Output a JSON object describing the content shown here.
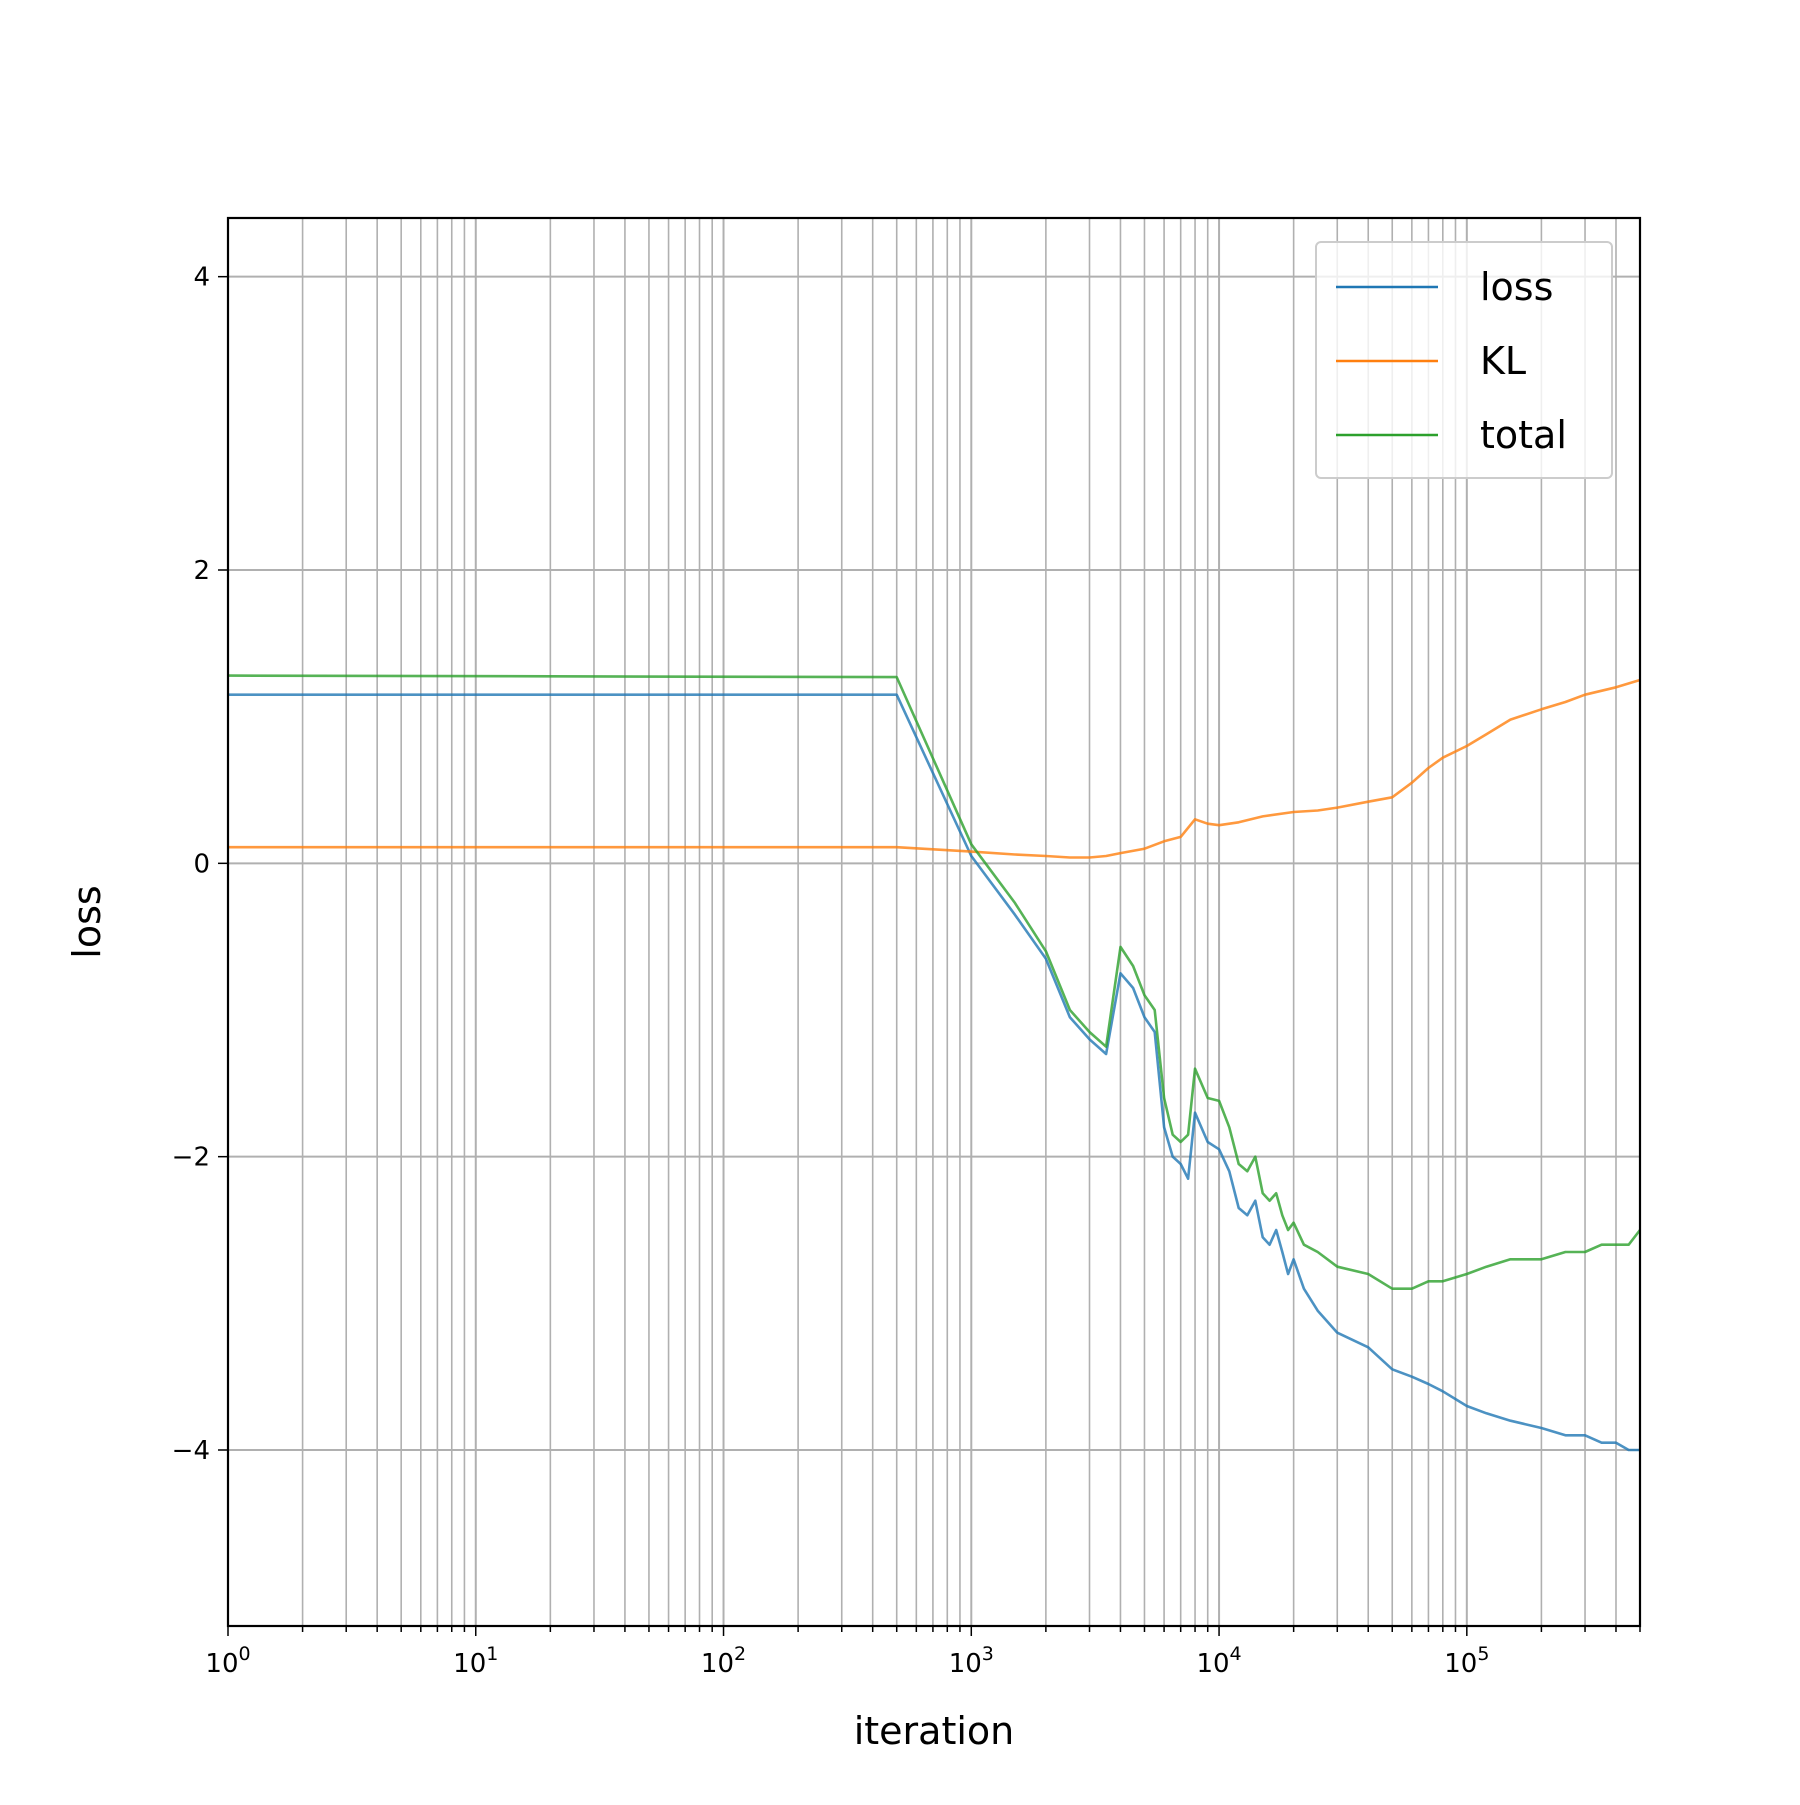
{
  "chart_data": {
    "type": "line",
    "title": "",
    "xlabel": "iteration",
    "ylabel": "loss",
    "xscale": "log",
    "xlim": [
      1,
      500000
    ],
    "ylim": [
      -5.2,
      4.4
    ],
    "grid": "major and minor, both axes",
    "legend_position": "top-right",
    "x_ticks": [
      {
        "value": 1,
        "base": "10",
        "exp": "0"
      },
      {
        "value": 10,
        "base": "10",
        "exp": "1"
      },
      {
        "value": 100,
        "base": "10",
        "exp": "2"
      },
      {
        "value": 1000,
        "base": "10",
        "exp": "3"
      },
      {
        "value": 10000,
        "base": "10",
        "exp": "4"
      },
      {
        "value": 100000,
        "base": "10",
        "exp": "5"
      }
    ],
    "y_ticks": [
      {
        "value": 4,
        "label": "4"
      },
      {
        "value": 2,
        "label": "2"
      },
      {
        "value": 0,
        "label": "0"
      },
      {
        "value": -2,
        "label": "−2"
      },
      {
        "value": -4,
        "label": "−4"
      }
    ],
    "series": [
      {
        "name": "loss",
        "color": "#1f77b4",
        "x": [
          1,
          500,
          1000,
          1500,
          2000,
          2500,
          3000,
          3500,
          4000,
          4500,
          5000,
          5500,
          6000,
          6500,
          7000,
          7500,
          8000,
          9000,
          10000,
          11000,
          12000,
          13000,
          14000,
          15000,
          16000,
          17000,
          18000,
          19000,
          20000,
          22000,
          25000,
          30000,
          40000,
          50000,
          60000,
          70000,
          80000,
          100000,
          120000,
          150000,
          200000,
          250000,
          300000,
          350000,
          400000,
          450000,
          500000
        ],
        "y": [
          1.15,
          1.15,
          0.05,
          -0.35,
          -0.65,
          -1.05,
          -1.2,
          -1.3,
          -0.75,
          -0.85,
          -1.05,
          -1.15,
          -1.8,
          -2.0,
          -2.05,
          -2.15,
          -1.7,
          -1.9,
          -1.95,
          -2.1,
          -2.35,
          -2.4,
          -2.3,
          -2.55,
          -2.6,
          -2.5,
          -2.65,
          -2.8,
          -2.7,
          -2.9,
          -3.05,
          -3.2,
          -3.3,
          -3.45,
          -3.5,
          -3.55,
          -3.6,
          -3.7,
          -3.75,
          -3.8,
          -3.85,
          -3.9,
          -3.9,
          -3.95,
          -3.95,
          -4.0,
          -4.0
        ]
      },
      {
        "name": "KL",
        "color": "#ff7f0e",
        "x": [
          1,
          500,
          1000,
          1500,
          2000,
          2500,
          3000,
          3500,
          4000,
          5000,
          6000,
          7000,
          8000,
          9000,
          10000,
          12000,
          15000,
          20000,
          25000,
          30000,
          40000,
          50000,
          60000,
          70000,
          80000,
          100000,
          120000,
          150000,
          200000,
          250000,
          300000,
          400000,
          500000
        ],
        "y": [
          0.11,
          0.11,
          0.08,
          0.06,
          0.05,
          0.04,
          0.04,
          0.05,
          0.07,
          0.1,
          0.15,
          0.18,
          0.3,
          0.27,
          0.26,
          0.28,
          0.32,
          0.35,
          0.36,
          0.38,
          0.42,
          0.45,
          0.55,
          0.65,
          0.72,
          0.8,
          0.88,
          0.98,
          1.05,
          1.1,
          1.15,
          1.2,
          1.25
        ]
      },
      {
        "name": "total",
        "color": "#2ca02c",
        "x": [
          1,
          500,
          1000,
          1500,
          2000,
          2500,
          3000,
          3500,
          4000,
          4500,
          5000,
          5500,
          6000,
          6500,
          7000,
          7500,
          8000,
          9000,
          10000,
          11000,
          12000,
          13000,
          14000,
          15000,
          16000,
          17000,
          18000,
          19000,
          20000,
          22000,
          25000,
          30000,
          40000,
          50000,
          60000,
          70000,
          80000,
          100000,
          120000,
          150000,
          200000,
          250000,
          300000,
          350000,
          400000,
          450000,
          500000
        ],
        "y": [
          1.28,
          1.27,
          0.13,
          -0.27,
          -0.6,
          -1.0,
          -1.15,
          -1.25,
          -0.57,
          -0.7,
          -0.9,
          -1.0,
          -1.6,
          -1.85,
          -1.9,
          -1.85,
          -1.4,
          -1.6,
          -1.62,
          -1.8,
          -2.05,
          -2.1,
          -2.0,
          -2.25,
          -2.3,
          -2.25,
          -2.4,
          -2.5,
          -2.45,
          -2.6,
          -2.65,
          -2.75,
          -2.8,
          -2.9,
          -2.9,
          -2.85,
          -2.85,
          -2.8,
          -2.75,
          -2.7,
          -2.7,
          -2.65,
          -2.65,
          -2.6,
          -2.6,
          -2.6,
          -2.5
        ]
      }
    ]
  }
}
